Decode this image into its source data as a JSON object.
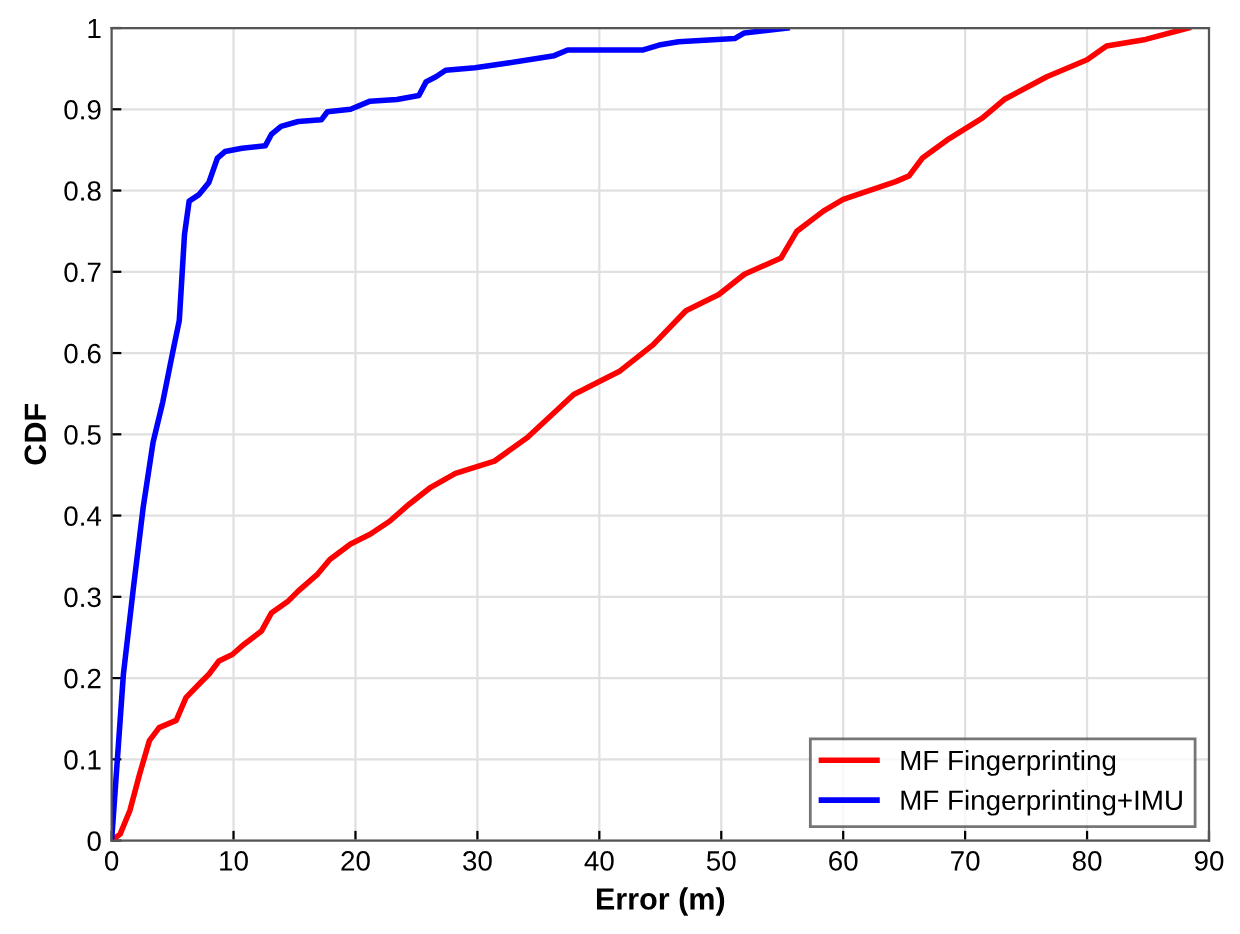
{
  "chart_data": {
    "type": "line",
    "xlabel": "Error (m)",
    "ylabel": "CDF",
    "xlim": [
      0,
      90
    ],
    "ylim": [
      0,
      1
    ],
    "xticks": [
      0,
      10,
      20,
      30,
      40,
      50,
      60,
      70,
      80,
      90
    ],
    "yticks": [
      0,
      0.1,
      0.2,
      0.3,
      0.4,
      0.5,
      0.6,
      0.7,
      0.8,
      0.9,
      1
    ],
    "grid": true,
    "legend": "bottom right",
    "marker": "none",
    "line_style": "solid",
    "series": [
      {
        "name": "MF Fingerprinting",
        "color": "#ff0000",
        "x": [
          0,
          0.7,
          1.5,
          2.3,
          3.1,
          3.9,
          5.3,
          6.1,
          7.2,
          8.0,
          8.8,
          9.9,
          10.9,
          12.3,
          13.1,
          14.5,
          15.3,
          16.9,
          17.9,
          19.6,
          21.2,
          22.8,
          24.4,
          26.1,
          28.2,
          31.4,
          34.1,
          37.9,
          41.7,
          44.4,
          47.1,
          49.8,
          51.9,
          54.9,
          56.2,
          58.4,
          60.0,
          64.3,
          65.4,
          66.5,
          68.7,
          71.4,
          73.2,
          76.7,
          80.0,
          81.6,
          84.8,
          88.3
        ],
        "values": [
          0,
          0.008,
          0.037,
          0.082,
          0.123,
          0.139,
          0.148,
          0.176,
          0.193,
          0.205,
          0.221,
          0.229,
          0.242,
          0.258,
          0.28,
          0.295,
          0.307,
          0.328,
          0.346,
          0.365,
          0.377,
          0.393,
          0.414,
          0.434,
          0.452,
          0.467,
          0.496,
          0.549,
          0.578,
          0.61,
          0.652,
          0.672,
          0.697,
          0.717,
          0.75,
          0.775,
          0.789,
          0.811,
          0.818,
          0.84,
          0.864,
          0.889,
          0.912,
          0.94,
          0.961,
          0.978,
          0.986,
          1.0
        ]
      },
      {
        "name": "MF Fingerprinting+IMU",
        "color": "#0000ff",
        "x": [
          0,
          0.97,
          1.78,
          2.59,
          3.4,
          4.2,
          5.0,
          5.55,
          5.98,
          6.36,
          7.17,
          7.98,
          8.68,
          9.3,
          10.7,
          12.6,
          13.1,
          13.9,
          15.3,
          17.2,
          17.7,
          19.6,
          21.2,
          23.4,
          25.2,
          25.8,
          26.6,
          27.4,
          29.8,
          32.5,
          36.3,
          37.4,
          43.6,
          44.9,
          46.5,
          51.1,
          51.9,
          55.4
        ],
        "values": [
          0,
          0.205,
          0.31,
          0.41,
          0.49,
          0.54,
          0.6,
          0.64,
          0.746,
          0.787,
          0.795,
          0.81,
          0.84,
          0.848,
          0.852,
          0.855,
          0.869,
          0.879,
          0.885,
          0.887,
          0.897,
          0.9,
          0.91,
          0.912,
          0.917,
          0.934,
          0.94,
          0.948,
          0.951,
          0.957,
          0.966,
          0.973,
          0.973,
          0.979,
          0.983,
          0.987,
          0.994,
          1.0
        ]
      }
    ]
  }
}
